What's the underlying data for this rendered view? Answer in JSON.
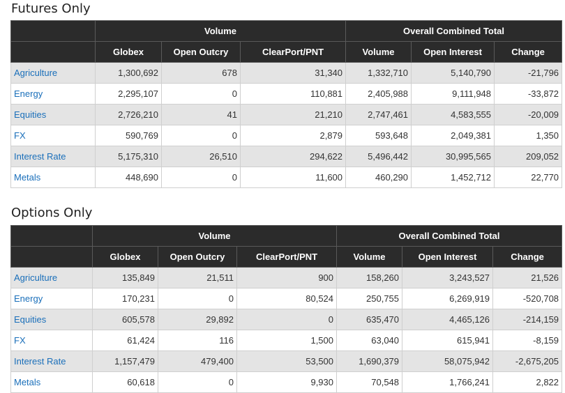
{
  "futures": {
    "title": "Futures Only",
    "group_headers": [
      "Volume",
      "Overall Combined Total"
    ],
    "columns": [
      "Globex",
      "Open Outcry",
      "ClearPort/PNT",
      "Volume",
      "Open Interest",
      "Change"
    ],
    "rows": [
      {
        "cat": "Agriculture",
        "vals": [
          "1,300,692",
          "678",
          "31,340",
          "1,332,710",
          "5,140,790",
          "-21,796"
        ]
      },
      {
        "cat": "Energy",
        "vals": [
          "2,295,107",
          "0",
          "110,881",
          "2,405,988",
          "9,111,948",
          "-33,872"
        ]
      },
      {
        "cat": "Equities",
        "vals": [
          "2,726,210",
          "41",
          "21,210",
          "2,747,461",
          "4,583,555",
          "-20,009"
        ]
      },
      {
        "cat": "FX",
        "vals": [
          "590,769",
          "0",
          "2,879",
          "593,648",
          "2,049,381",
          "1,350"
        ]
      },
      {
        "cat": "Interest Rate",
        "vals": [
          "5,175,310",
          "26,510",
          "294,622",
          "5,496,442",
          "30,995,565",
          "209,052"
        ]
      },
      {
        "cat": "Metals",
        "vals": [
          "448,690",
          "0",
          "11,600",
          "460,290",
          "1,452,712",
          "22,770"
        ]
      }
    ]
  },
  "options": {
    "title": "Options Only",
    "group_headers": [
      "Volume",
      "Overall Combined Total"
    ],
    "columns": [
      "Globex",
      "Open Outcry",
      "ClearPort/PNT",
      "Volume",
      "Open Interest",
      "Change"
    ],
    "rows": [
      {
        "cat": "Agriculture",
        "vals": [
          "135,849",
          "21,511",
          "900",
          "158,260",
          "3,243,527",
          "21,526"
        ]
      },
      {
        "cat": "Energy",
        "vals": [
          "170,231",
          "0",
          "80,524",
          "250,755",
          "6,269,919",
          "-520,708"
        ]
      },
      {
        "cat": "Equities",
        "vals": [
          "605,578",
          "29,892",
          "0",
          "635,470",
          "4,465,126",
          "-214,159"
        ]
      },
      {
        "cat": "FX",
        "vals": [
          "61,424",
          "116",
          "1,500",
          "63,040",
          "615,941",
          "-8,159"
        ]
      },
      {
        "cat": "Interest Rate",
        "vals": [
          "1,157,479",
          "479,400",
          "53,500",
          "1,690,379",
          "58,075,942",
          "-2,675,205"
        ]
      },
      {
        "cat": "Metals",
        "vals": [
          "60,618",
          "0",
          "9,930",
          "70,548",
          "1,766,241",
          "2,822"
        ]
      }
    ]
  }
}
